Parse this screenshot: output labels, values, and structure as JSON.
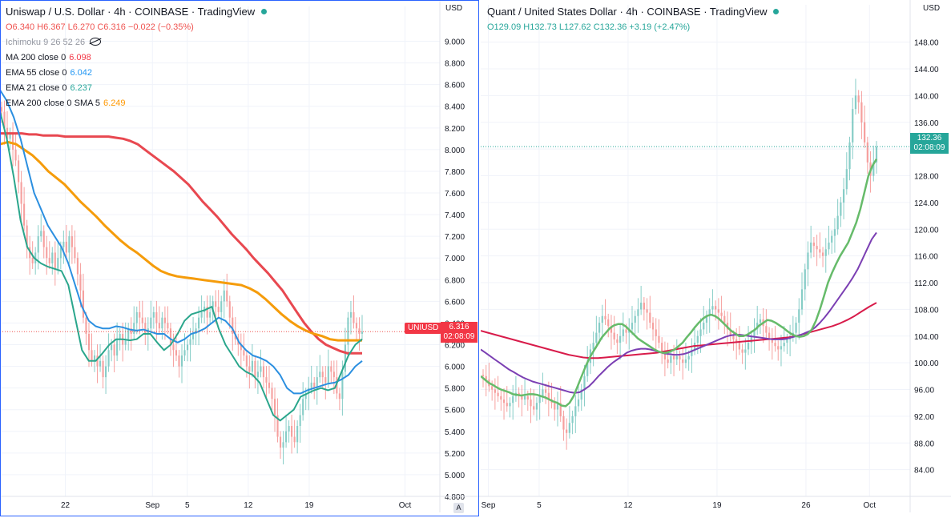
{
  "left_pane": {
    "title": "Uniswap / U.S. Dollar · 4h · COINBASE · TradingView",
    "ohlc": "O6.340 H6.367 L6.270 C6.316 −0.022 (−0.35%)",
    "indicators": [
      {
        "label": "Ichimoku 9 26 52 26",
        "value": "",
        "color": "#9598a1"
      },
      {
        "label": "MA 200 close 0",
        "value": "6.098",
        "color": "#f23645"
      },
      {
        "label": "EMA 55 close 0",
        "value": "6.042",
        "color": "#2196f3"
      },
      {
        "label": "EMA 21 close 0",
        "value": "6.237",
        "color": "#26a69a"
      },
      {
        "label": "EMA 200 close 0 SMA 5",
        "value": "6.249",
        "color": "#ff9800"
      }
    ],
    "unit": "USD",
    "symbol_badge": "UNIUSD",
    "last_price": "6.316",
    "countdown": "02:08:09",
    "auto_label": "A"
  },
  "right_pane": {
    "title": "Quant / United States Dollar · 4h · COINBASE · TradingView",
    "ohlc": "O129.09 H132.73 L127.62 C132.36 +3.19 (+2.47%)",
    "unit": "USD",
    "last_price": "132.36",
    "countdown": "02:08:09"
  },
  "chart_data": [
    {
      "type": "candlestick",
      "title": "Uniswap / U.S. Dollar · 4h · COINBASE · TradingView",
      "ylim": [
        4.8,
        9.1
      ],
      "y_ticks": [
        "9.000",
        "8.800",
        "8.600",
        "8.400",
        "8.200",
        "8.000",
        "7.800",
        "7.600",
        "7.400",
        "7.200",
        "7.000",
        "6.800",
        "6.600",
        "6.400",
        "6.200",
        "6.000",
        "5.800",
        "5.600",
        "5.400",
        "5.200",
        "5.000",
        "4.800"
      ],
      "x_ticks": [
        "22",
        "Sep",
        "5",
        "12",
        "19",
        "Oct"
      ],
      "x_tick_days": [
        22,
        32,
        36,
        43,
        50,
        61
      ],
      "x_range_days": [
        14.5,
        65
      ],
      "close": [
        8.35,
        8.2,
        8.1,
        8.15,
        8.0,
        7.9,
        7.7,
        7.5,
        7.3,
        7.1,
        7.0,
        6.95,
        7.05,
        7.2,
        7.25,
        7.1,
        7.0,
        6.95,
        7.05,
        6.9,
        7.0,
        7.1,
        7.15,
        7.05,
        7.2,
        7.1,
        7.0,
        6.85,
        6.7,
        6.45,
        6.3,
        6.15,
        6.05,
        6.1,
        6.0,
        6.05,
        5.9,
        6.0,
        6.15,
        6.2,
        6.1,
        6.25,
        6.3,
        6.2,
        6.25,
        6.35,
        6.3,
        6.4,
        6.5,
        6.45,
        6.4,
        6.3,
        6.35,
        6.45,
        6.5,
        6.4,
        6.35,
        6.45,
        6.4,
        6.35,
        6.2,
        6.15,
        6.1,
        6.0,
        6.1,
        6.15,
        6.2,
        6.25,
        6.3,
        6.35,
        6.45,
        6.5,
        6.55,
        6.45,
        6.5,
        6.6,
        6.55,
        6.5,
        6.6,
        6.7,
        6.6,
        6.45,
        6.3,
        6.25,
        6.2,
        6.15,
        6.1,
        6.0,
        5.95,
        6.05,
        5.9,
        5.95,
        6.0,
        5.9,
        5.85,
        5.8,
        5.7,
        5.55,
        5.35,
        5.25,
        5.3,
        5.4,
        5.45,
        5.35,
        5.3,
        5.45,
        5.55,
        5.7,
        5.75,
        5.8,
        5.85,
        5.8,
        5.9,
        5.95,
        5.9,
        5.85,
        6.0,
        5.95,
        5.9,
        5.75,
        5.7,
        5.95,
        6.2,
        6.45,
        6.5,
        6.4,
        6.35,
        6.3,
        6.32
      ],
      "ma200": [
        8.15,
        8.15,
        8.15,
        8.15,
        8.14,
        8.14,
        8.13,
        8.13,
        8.13,
        8.12,
        8.12,
        8.12,
        8.12,
        8.12,
        8.12,
        8.12,
        8.11,
        8.1,
        8.08,
        8.05,
        8.0,
        7.95,
        7.9,
        7.85,
        7.8,
        7.74,
        7.68,
        7.6,
        7.52,
        7.45,
        7.38,
        7.3,
        7.22,
        7.15,
        7.08,
        7.0,
        6.93,
        6.86,
        6.78,
        6.7,
        6.6,
        6.5,
        6.4,
        6.32,
        6.25,
        6.2,
        6.17,
        6.14,
        6.12,
        6.12,
        6.12
      ],
      "ema200sma": [
        8.05,
        8.07,
        8.05,
        8.0,
        7.95,
        7.88,
        7.8,
        7.74,
        7.68,
        7.6,
        7.52,
        7.45,
        7.38,
        7.3,
        7.23,
        7.16,
        7.1,
        7.05,
        6.99,
        6.93,
        6.88,
        6.85,
        6.83,
        6.82,
        6.81,
        6.8,
        6.79,
        6.78,
        6.77,
        6.76,
        6.75,
        6.72,
        6.68,
        6.62,
        6.55,
        6.48,
        6.42,
        6.37,
        6.33,
        6.3,
        6.28,
        6.25,
        6.24,
        6.24,
        6.24,
        6.24
      ],
      "ema55": [
        8.55,
        8.45,
        8.3,
        8.1,
        7.85,
        7.6,
        7.45,
        7.3,
        7.2,
        7.1,
        6.95,
        6.75,
        6.55,
        6.42,
        6.37,
        6.35,
        6.35,
        6.37,
        6.36,
        6.34,
        6.33,
        6.34,
        6.32,
        6.3,
        6.3,
        6.25,
        6.22,
        6.25,
        6.3,
        6.32,
        6.35,
        6.4,
        6.45,
        6.42,
        6.35,
        6.22,
        6.15,
        6.1,
        6.08,
        6.05,
        6.0,
        5.92,
        5.8,
        5.75,
        5.75,
        5.78,
        5.8,
        5.82,
        5.84,
        5.85,
        5.88,
        5.92,
        6.0,
        6.05
      ],
      "ema21": [
        8.35,
        8.1,
        7.75,
        7.35,
        7.1,
        7.0,
        6.95,
        6.92,
        6.9,
        6.88,
        6.75,
        6.45,
        6.15,
        6.05,
        6.05,
        6.12,
        6.2,
        6.25,
        6.25,
        6.24,
        6.25,
        6.3,
        6.3,
        6.22,
        6.15,
        6.2,
        6.3,
        6.42,
        6.48,
        6.5,
        6.52,
        6.55,
        6.35,
        6.2,
        6.1,
        6.0,
        5.95,
        5.92,
        5.85,
        5.7,
        5.55,
        5.5,
        5.55,
        5.6,
        5.72,
        5.75,
        5.78,
        5.8,
        5.78,
        5.8,
        5.95,
        6.1,
        6.2,
        6.25
      ]
    },
    {
      "type": "candlestick",
      "title": "Quant / United States Dollar · 4h · COINBASE · TradingView",
      "ylim": [
        80,
        150
      ],
      "y_ticks": [
        "148.00",
        "144.00",
        "140.00",
        "136.00",
        "132.00",
        "128.00",
        "124.00",
        "120.00",
        "116.00",
        "112.00",
        "108.00",
        "104.00",
        "100.00",
        "96.00",
        "92.00",
        "88.00",
        "84.00"
      ],
      "x_ticks": [
        "Sep",
        "5",
        "12",
        "19",
        "26",
        "Oct"
      ],
      "x_tick_days": [
        1,
        5,
        12,
        19,
        26,
        31
      ],
      "x_range_days": [
        0.4,
        34.2
      ],
      "close": [
        98,
        97.5,
        96.5,
        96,
        95.5,
        95,
        94.5,
        94,
        93.5,
        94,
        95,
        95.5,
        95,
        94.5,
        95,
        94.5,
        93.5,
        93,
        94,
        95,
        96,
        95.5,
        94.5,
        94,
        93,
        94,
        92,
        90,
        89.5,
        91,
        92,
        93.5,
        94.5,
        96,
        98,
        100,
        102,
        103,
        104.5,
        106,
        107,
        106.5,
        105.5,
        104.5,
        103.5,
        103,
        104,
        105,
        104.5,
        105,
        106,
        107,
        108,
        109,
        108,
        107.5,
        106,
        105,
        104,
        103,
        101.5,
        100.5,
        100,
        101,
        100.5,
        101,
        100.5,
        100,
        100.5,
        101,
        102,
        103,
        104,
        105,
        106,
        107,
        108,
        108.5,
        108,
        107.5,
        107,
        106,
        105,
        104,
        103.5,
        103,
        102,
        101.5,
        102,
        103,
        104,
        105,
        106,
        106.5,
        105.5,
        104.5,
        103.5,
        103,
        102.5,
        102,
        102.5,
        103,
        103.5,
        104,
        104.5,
        106,
        108,
        111,
        114,
        116.5,
        118,
        117.5,
        117,
        116.5,
        116,
        117,
        118,
        119,
        120,
        122,
        124,
        126,
        129,
        133,
        138,
        140,
        139,
        136,
        133,
        130,
        128,
        130,
        132.36
      ],
      "ema21": [
        98,
        97.5,
        97,
        96.7,
        96.3,
        96,
        95.8,
        95.6,
        95.3,
        95.2,
        95.1,
        95.2,
        95.3,
        95.3,
        95.2,
        95,
        94.8,
        94.5,
        94.2,
        94,
        93.6,
        93.5,
        94,
        95,
        96.5,
        98,
        99.5,
        100.8,
        101.8,
        102.8,
        103.8,
        104.5,
        105.2,
        105.6,
        105.8,
        105.8,
        105.4,
        104.8,
        104.2,
        103.6,
        103.2,
        102.8,
        102.4,
        102,
        101.7,
        101.5,
        101.5,
        101.7,
        102,
        102.5,
        103,
        103.8,
        104.5,
        105.3,
        106,
        106.6,
        107,
        107.2,
        107,
        106.6,
        106,
        105.4,
        104.8,
        104.4,
        104,
        104,
        104.2,
        104.6,
        105,
        105.6,
        106,
        106.4,
        106.3,
        106,
        105.6,
        105.2,
        104.7,
        104.3,
        104,
        103.9,
        104,
        104.3,
        105,
        106.3,
        108,
        110,
        112,
        113.5,
        114.8,
        116,
        117,
        118,
        119.5,
        121,
        123,
        125.5,
        128,
        129.5,
        130.5
      ],
      "ema55": [
        102,
        101.5,
        101,
        100.5,
        100,
        99.5,
        99,
        98.6,
        98.2,
        97.8,
        97.5,
        97.2,
        97,
        96.8,
        96.6,
        96.4,
        96.2,
        96,
        95.8,
        95.6,
        95.5,
        95.6,
        96,
        96.5,
        97.2,
        98,
        98.7,
        99.4,
        100,
        100.5,
        101,
        101.5,
        101.8,
        102,
        102.1,
        102.1,
        102,
        101.8,
        101.6,
        101.4,
        101.3,
        101.2,
        101.2,
        101.3,
        101.5,
        101.8,
        102.1,
        102.4,
        102.7,
        103,
        103.3,
        103.6,
        103.9,
        104.1,
        104.2,
        104.2,
        104.1,
        104,
        103.9,
        103.8,
        103.7,
        103.6,
        103.5,
        103.5,
        103.5,
        103.6,
        103.8,
        104,
        104.2,
        104.5,
        104.8,
        105.3,
        106,
        106.8,
        107.7,
        108.7,
        109.7,
        110.7,
        111.7,
        112.8,
        114,
        115.5,
        117,
        118.5,
        119.5
      ],
      "ma200": [
        104.8,
        104.5,
        104.2,
        103.9,
        103.6,
        103.3,
        103,
        102.7,
        102.4,
        102.1,
        101.8,
        101.5,
        101.2,
        101,
        100.8,
        100.7,
        100.7,
        100.8,
        100.9,
        101,
        101.1,
        101.2,
        101.3,
        101.4,
        101.5,
        101.7,
        101.9,
        102.1,
        102.3,
        102.5,
        102.6,
        102.7,
        102.8,
        102.9,
        103,
        103.1,
        103.2,
        103.3,
        103.4,
        103.5,
        103.6,
        103.7,
        103.8,
        104,
        104.3,
        104.6,
        104.9,
        105.2,
        105.5,
        105.9,
        106.4,
        107,
        107.7,
        108.4,
        109
      ]
    }
  ]
}
